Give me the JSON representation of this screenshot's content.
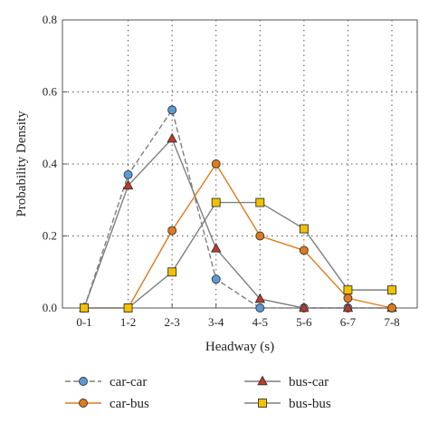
{
  "chart_data": {
    "type": "line",
    "xlabel": "Headway (s)",
    "ylabel": "Probability Density",
    "categories": [
      "0-1",
      "1-2",
      "2-3",
      "3-4",
      "4-5",
      "5-6",
      "6-7",
      "7-8"
    ],
    "ylim": [
      0,
      0.8
    ],
    "yticks": [
      "0.0",
      "0.2",
      "0.4",
      "0.6",
      "0.8"
    ],
    "grid": true,
    "legend_position": "bottom",
    "series": [
      {
        "name": "car-car",
        "values": [
          0,
          0.37,
          0.55,
          0.08,
          0.0,
          0.0,
          0.0,
          0.0
        ],
        "color": "#7f7f7f",
        "marker": "circle",
        "marker_color": "#5b9bd5",
        "dashed": true
      },
      {
        "name": "bus-car",
        "values": [
          0,
          0.34,
          0.47,
          0.165,
          0.025,
          0.0,
          0.0,
          0.0
        ],
        "color": "#7f7f7f",
        "marker": "triangle",
        "marker_color": "#c0392b",
        "dashed": false
      },
      {
        "name": "car-bus",
        "values": [
          0,
          0.0,
          0.215,
          0.4,
          0.2,
          0.16,
          0.027,
          0.0
        ],
        "color": "#e07b1b",
        "marker": "circle",
        "marker_color": "#e07b1b",
        "dashed": false
      },
      {
        "name": "bus-bus",
        "values": [
          0,
          0.0,
          0.1,
          0.293,
          0.293,
          0.22,
          0.05,
          0.05
        ],
        "color": "#7f7f7f",
        "marker": "square",
        "marker_color": "#f2c200",
        "dashed": false
      }
    ]
  }
}
